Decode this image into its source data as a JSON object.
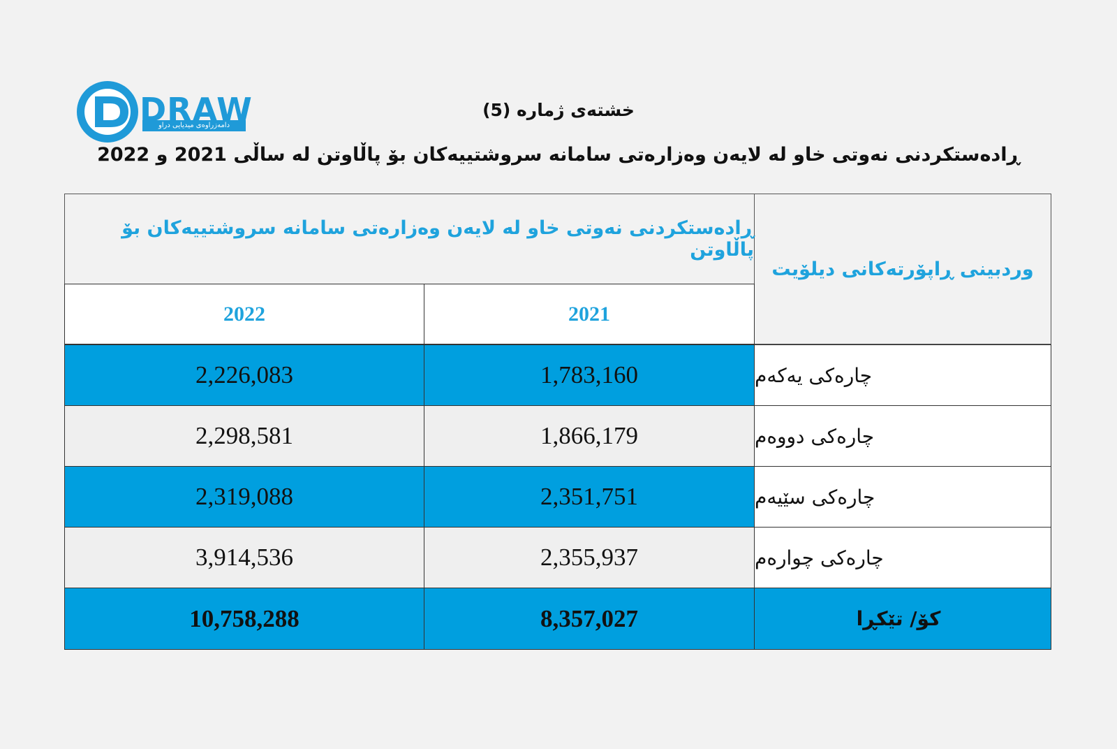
{
  "logo": {
    "text": "DRAW",
    "tagline": "دامەزراوەی میدیایی دراو"
  },
  "title": "خشتەی ژمارە (5)",
  "subtitle": "ڕادەستکردنی نەوتی خاو لە لایەن وەزارەتی سامانە سروشتییەکان بۆ پاڵاوتن لە ساڵی 2021 و 2022",
  "table": {
    "header_right": "وردبینی ڕاپۆرتەکانی دیلۆیت",
    "header_top": "ڕادەستکردنی نەوتی خاو لە لایەن وەزارەتی سامانە سروشتییەکان بۆ پاڵاوتن",
    "year_2021": "2021",
    "year_2022": "2022",
    "rows": [
      {
        "label": "چارەکی یەکەم",
        "v2021": "1,783,160",
        "v2022": "2,226,083"
      },
      {
        "label": "چارەکی دووەم",
        "v2021": "1,866,179",
        "v2022": "2,298,581"
      },
      {
        "label": "چارەکی سێیەم",
        "v2021": "2,351,751",
        "v2022": "2,319,088"
      },
      {
        "label": "چارەکی چوارەم",
        "v2021": "2,355,937",
        "v2022": "3,914,536"
      }
    ],
    "total": {
      "label": "کۆ/ تێکڕا",
      "v2021": "8,357,027",
      "v2022": "10,758,288"
    }
  },
  "colors": {
    "accent": "#009fdf",
    "header_text": "#1fa3dd"
  }
}
